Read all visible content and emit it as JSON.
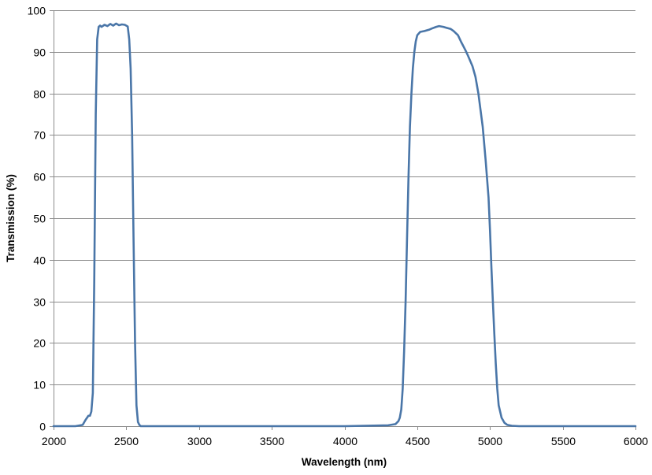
{
  "chart_data": {
    "type": "line",
    "title": "",
    "xlabel": "Wavelength (nm)",
    "ylabel": "Transmission (%)",
    "xlim": [
      2000,
      6000
    ],
    "ylim": [
      0,
      100
    ],
    "x_ticks": [
      2000,
      2500,
      3000,
      3500,
      4000,
      4500,
      5000,
      5500,
      6000
    ],
    "y_ticks": [
      0,
      10,
      20,
      30,
      40,
      50,
      60,
      70,
      80,
      90,
      100
    ],
    "grid": "horizontal",
    "legend": "none",
    "colors": {
      "series": "#4a76a8",
      "grid": "#8c8c8c"
    },
    "series": [
      {
        "x": [
          2000,
          2050,
          2100,
          2150,
          2200,
          2220,
          2240,
          2250,
          2260,
          2270,
          2280,
          2290,
          2300,
          2310,
          2320,
          2330,
          2350,
          2370,
          2390,
          2410,
          2430,
          2450,
          2470,
          2490,
          2510,
          2520,
          2530,
          2540,
          2550,
          2560,
          2570,
          2580,
          2590,
          2600,
          2650,
          3000,
          3500,
          4000,
          4300,
          4350,
          4370,
          4380,
          4390,
          4400,
          4410,
          4420,
          4430,
          4440,
          4450,
          4460,
          4470,
          4480,
          4490,
          4500,
          4520,
          4550,
          4580,
          4600,
          4630,
          4650,
          4680,
          4700,
          4730,
          4750,
          4780,
          4800,
          4830,
          4850,
          4880,
          4900,
          4920,
          4950,
          4970,
          4990,
          5000,
          5010,
          5020,
          5030,
          5040,
          5050,
          5060,
          5080,
          5100,
          5120,
          5150,
          5200,
          5300,
          5500,
          6000
        ],
        "y": [
          0,
          0,
          0,
          0,
          0.3,
          1.5,
          2.5,
          2.5,
          3.5,
          8,
          35,
          75,
          93,
          96,
          96.3,
          96,
          96.5,
          96.2,
          96.7,
          96.3,
          96.8,
          96.4,
          96.6,
          96.5,
          96.1,
          93,
          86,
          70,
          45,
          20,
          5,
          1,
          0.3,
          0,
          0,
          0,
          0,
          0,
          0.2,
          0.5,
          1.2,
          2,
          4,
          9,
          18,
          30,
          45,
          60,
          72,
          80,
          86,
          90,
          92.5,
          94,
          94.8,
          95,
          95.3,
          95.6,
          96,
          96.2,
          96,
          95.8,
          95.5,
          95,
          94,
          92.5,
          90.5,
          89,
          86.5,
          84,
          80,
          72,
          64,
          55,
          47,
          38,
          30,
          22,
          15,
          9,
          5,
          2,
          0.8,
          0.3,
          0.1,
          0,
          0,
          0,
          0
        ]
      }
    ]
  }
}
